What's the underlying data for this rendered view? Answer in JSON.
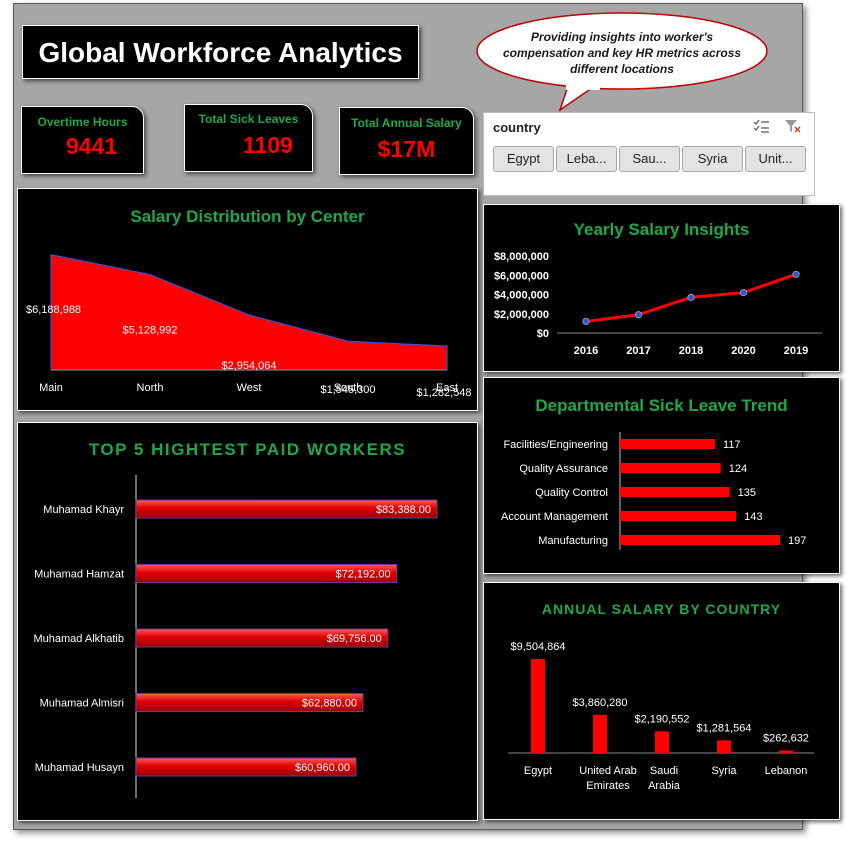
{
  "header": {
    "title": "Global Workforce Analytics",
    "callout": "Providing insights into worker's compensation and key HR metrics across different locations"
  },
  "kpis": [
    {
      "label": "Overtime Hours",
      "value": "9441"
    },
    {
      "label": "Total Sick Leaves",
      "value": "1109"
    },
    {
      "label": "Total Annual Salary",
      "value": "$17M"
    }
  ],
  "slicer": {
    "title": "country",
    "items": [
      "Egypt",
      "Leba...",
      "Sau...",
      "Syria",
      "Unit..."
    ]
  },
  "colors": {
    "accent_green": "#1fa84a",
    "bar_red": "#ff0000",
    "panel_bg": "#000000"
  },
  "chart_data": [
    {
      "id": "center",
      "type": "area",
      "title": "Salary Distribution by Center",
      "categories": [
        "Main",
        "North",
        "West",
        "South",
        "East"
      ],
      "values": [
        6188988,
        5128992,
        2954064,
        1545300,
        1282548
      ],
      "value_labels": [
        "$6,188,988",
        "$5,128,992",
        "$2,954,064",
        "$1,545,300",
        "$1,282,548"
      ],
      "ylim": [
        0,
        6500000
      ]
    },
    {
      "id": "yearly",
      "type": "line",
      "title": "Yearly Salary Insights",
      "categories": [
        "2016",
        "2017",
        "2018",
        "2020",
        "2019"
      ],
      "values": [
        1200000,
        1900000,
        3700000,
        4200000,
        6100000
      ],
      "y_ticks": [
        "$0",
        "$2,000,000",
        "$4,000,000",
        "$6,000,000",
        "$8,000,000"
      ],
      "ylim": [
        0,
        8000000
      ]
    },
    {
      "id": "top5",
      "type": "bar",
      "orientation": "horizontal",
      "title": "TOP 5 HIGHTEST PAID WORKERS",
      "categories": [
        "Muhamad Khayr",
        "Muhamad Hamzat",
        "Muhamad Alkhatib",
        "Muhamad Almisri",
        "Muhamad Husayn"
      ],
      "values": [
        83388,
        72192,
        69756,
        62880,
        60960
      ],
      "value_labels": [
        "$83,388.00",
        "$72,192.00",
        "$69,756.00",
        "$62,880.00",
        "$60,960.00"
      ]
    },
    {
      "id": "sick",
      "type": "bar",
      "orientation": "horizontal",
      "title": "Departmental Sick Leave Trend",
      "categories": [
        "Facilities/Engineering",
        "Quality Assurance",
        "Quality Control",
        "Account Management",
        "Manufacturing"
      ],
      "values": [
        117,
        124,
        135,
        143,
        197
      ]
    },
    {
      "id": "country",
      "type": "bar",
      "title": "ANNUAL SALARY BY COUNTRY",
      "categories": [
        "Egypt",
        "United Arab Emirates",
        "Saudi Arabia",
        "Syria",
        "Lebanon"
      ],
      "category_lines": [
        [
          "Egypt"
        ],
        [
          "United Arab",
          "Emirates"
        ],
        [
          "Saudi",
          "Arabia"
        ],
        [
          "Syria"
        ],
        [
          "Lebanon"
        ]
      ],
      "values": [
        9504864,
        3860280,
        2190552,
        1281564,
        262632
      ],
      "value_labels": [
        "$9,504,864",
        "$3,860,280",
        "$2,190,552",
        "$1,281,564",
        "$262,632"
      ]
    }
  ]
}
